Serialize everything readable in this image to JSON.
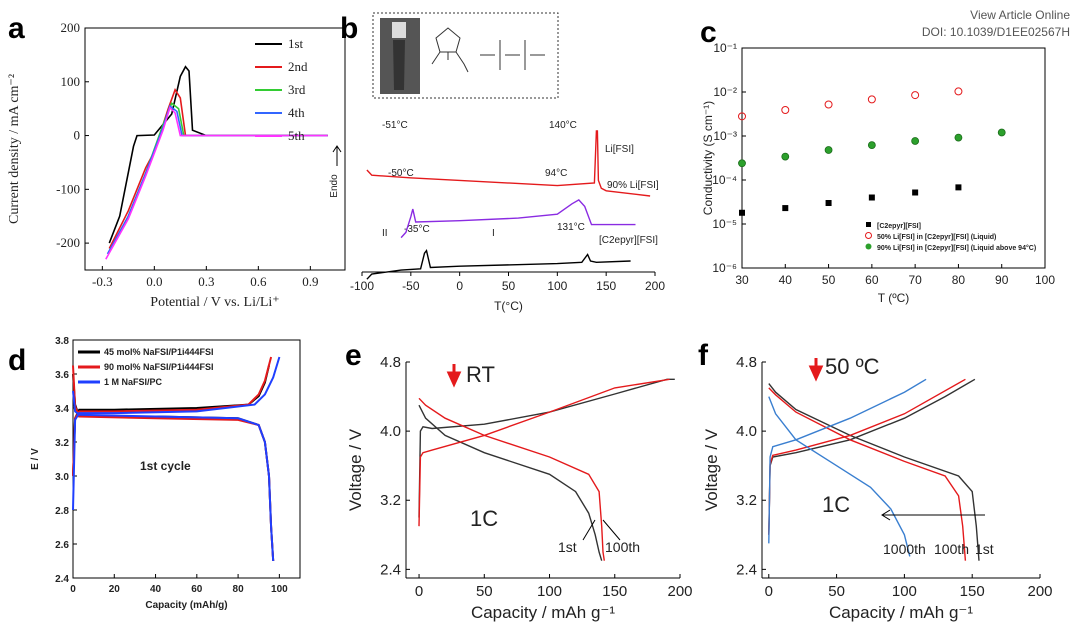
{
  "header": {
    "line1": "View Article Online",
    "line2": "DOI: 10.1039/D1EE02567H"
  },
  "chart_data": [
    {
      "panel": "a",
      "type": "line",
      "xlabel": "Potential / V vs. Li/Li⁺",
      "ylabel": "Current density / mA cm⁻²",
      "xlim": [
        -0.4,
        1.1
      ],
      "ylim": [
        -250,
        200
      ],
      "xticks": [
        "-0.3",
        "0.0",
        "0.3",
        "0.6",
        "0.9"
      ],
      "yticks": [
        "-200",
        "-100",
        "0",
        "100",
        "200"
      ],
      "xtick_values": [
        -0.3,
        0.0,
        0.3,
        0.6,
        0.9
      ],
      "ytick_values": [
        -200,
        -100,
        0,
        100,
        200
      ],
      "legend": "top-right",
      "series": [
        {
          "name": "1st",
          "color": "#000000",
          "x": [
            -0.26,
            -0.2,
            -0.12,
            -0.1,
            0.0,
            0.1,
            0.15,
            0.18,
            0.2,
            0.22,
            0.3,
            0.6,
            1.0
          ],
          "y": [
            -200,
            -150,
            -20,
            0,
            1,
            40,
            110,
            128,
            120,
            10,
            0,
            0,
            0
          ]
        },
        {
          "name": "2nd",
          "color": "#e41a1c",
          "x": [
            -0.26,
            -0.15,
            -0.05,
            0.0,
            0.08,
            0.12,
            0.15,
            0.18,
            0.3,
            1.0
          ],
          "y": [
            -210,
            -140,
            -60,
            -30,
            50,
            85,
            70,
            0,
            0,
            0
          ]
        },
        {
          "name": "3rd",
          "color": "#33cc33",
          "x": [
            -0.26,
            -0.15,
            -0.05,
            0.05,
            0.1,
            0.14,
            0.17,
            0.3,
            1.0
          ],
          "y": [
            -215,
            -150,
            -70,
            20,
            60,
            50,
            0,
            0,
            0
          ]
        },
        {
          "name": "4th",
          "color": "#3366ff",
          "x": [
            -0.27,
            -0.15,
            -0.05,
            0.05,
            0.09,
            0.13,
            0.16,
            0.3,
            1.0
          ],
          "y": [
            -220,
            -150,
            -70,
            15,
            55,
            45,
            0,
            0,
            0
          ]
        },
        {
          "name": "5th",
          "color": "#ff33ff",
          "x": [
            -0.28,
            -0.15,
            -0.05,
            0.05,
            0.09,
            0.12,
            0.15,
            0.3,
            1.0
          ],
          "y": [
            -230,
            -155,
            -75,
            10,
            52,
            42,
            0,
            0,
            0
          ]
        }
      ]
    },
    {
      "panel": "b",
      "type": "line",
      "xlabel": "T(°C)",
      "ylabel": "Endo",
      "xlim": [
        -100,
        200
      ],
      "xticks": [
        "-100",
        "-50",
        "0",
        "50",
        "100",
        "150",
        "200"
      ],
      "xtick_values": [
        -100,
        -50,
        0,
        50,
        100,
        150,
        200
      ],
      "annotations": [
        "-51°C",
        "140°C",
        "-50°C",
        "94°C",
        "II",
        "-35°C",
        "I",
        "131°C"
      ],
      "series": [
        {
          "name": "Li[FSI]",
          "color": "#e41a1c",
          "x": [
            -95,
            -90,
            -51,
            0,
            100,
            138,
            140,
            141,
            142,
            145,
            150,
            195
          ],
          "y": [
            3.0,
            2.8,
            2.7,
            2.6,
            2.4,
            2.5,
            4.5,
            4.5,
            2.6,
            2.3,
            2.2,
            2.0
          ]
        },
        {
          "name": "90% Li[FSI]",
          "color": "#8a2be2",
          "x": [
            -60,
            -55,
            -50,
            -48,
            -45,
            0,
            60,
            100,
            115,
            122,
            128,
            135,
            180
          ],
          "y": [
            0.4,
            0.6,
            1.2,
            1.5,
            1.0,
            1.05,
            1.15,
            1.3,
            1.7,
            1.85,
            1.6,
            0.9,
            0.9
          ]
        },
        {
          "name": "[C2epyr][FSI]",
          "color": "#000000",
          "x": [
            -95,
            -90,
            -60,
            -40,
            -36,
            -34,
            -30,
            0,
            100,
            125,
            131,
            134,
            140,
            175
          ],
          "y": [
            -1.2,
            -1.0,
            -0.85,
            -0.8,
            -0.2,
            -0.1,
            -0.75,
            -0.7,
            -0.6,
            -0.55,
            -0.25,
            -0.5,
            -0.55,
            -0.5
          ]
        }
      ]
    },
    {
      "panel": "c",
      "type": "scatter",
      "xlabel": "T (ºC)",
      "ylabel": "Conductivity (S cm⁻¹)",
      "xlim": [
        30,
        100
      ],
      "ylim": [
        1e-06,
        0.1
      ],
      "yscale": "log",
      "xticks": [
        "30",
        "40",
        "50",
        "60",
        "70",
        "80",
        "90",
        "100"
      ],
      "xtick_values": [
        30,
        40,
        50,
        60,
        70,
        80,
        90,
        100
      ],
      "yticks": [
        "10⁻⁶",
        "10⁻⁵",
        "10⁻⁴",
        "10⁻³",
        "10⁻²",
        "10⁻¹"
      ],
      "ytick_exps": [
        -6,
        -5,
        -4,
        -3,
        -2,
        -1
      ],
      "legend": "bottom-right",
      "series": [
        {
          "name": "[C2epyr][FSI]",
          "marker": "square",
          "color": "#000000",
          "x": [
            30,
            40,
            50,
            60,
            70,
            80
          ],
          "y": [
            1.8e-05,
            2.3e-05,
            3e-05,
            4e-05,
            5.2e-05,
            6.8e-05
          ]
        },
        {
          "name": "50% Li[FSI] in [C2epyr][FSI] (Liquid)",
          "marker": "open-circle",
          "color": "#e41a1c",
          "x": [
            30,
            40,
            50,
            60,
            70,
            80
          ],
          "y": [
            0.0028,
            0.0039,
            0.0052,
            0.0068,
            0.0085,
            0.0103
          ]
        },
        {
          "name": "90% Li[FSI] in [C2epyr][FSI] (Liquid above 94°C)",
          "marker": "green-circle",
          "color": "#2ca02c",
          "x": [
            30,
            40,
            50,
            60,
            70,
            80,
            90
          ],
          "y": [
            0.00024,
            0.00034,
            0.00048,
            0.00062,
            0.00077,
            0.00092,
            0.0012
          ]
        }
      ]
    },
    {
      "panel": "d",
      "type": "line",
      "xlabel": "Capacity (mAh/g)",
      "ylabel": "E / V",
      "xlim": [
        0,
        110
      ],
      "ylim": [
        2.4,
        3.8
      ],
      "xticks": [
        "0",
        "20",
        "40",
        "60",
        "80",
        "100"
      ],
      "xtick_values": [
        0,
        20,
        40,
        60,
        80,
        100
      ],
      "yticks": [
        "2.4",
        "2.6",
        "2.8",
        "3.0",
        "3.2",
        "3.4",
        "3.6",
        "3.8"
      ],
      "ytick_values": [
        2.4,
        2.6,
        2.8,
        3.0,
        3.2,
        3.4,
        3.6,
        3.8
      ],
      "annotation": "1st cycle",
      "legend": "top-left",
      "series": [
        {
          "name": "45 mol% NaFSI/P1i444FSI",
          "color": "#000000",
          "charge": {
            "x": [
              0,
              1,
              3,
              20,
              60,
              85,
              90,
              93,
              95
            ],
            "y": [
              3.0,
              3.34,
              3.39,
              3.39,
              3.4,
              3.42,
              3.47,
              3.55,
              3.65
            ]
          },
          "discharge": {
            "x": [
              0,
              1,
              3,
              40,
              80,
              90,
              93,
              95,
              96,
              97
            ],
            "y": [
              3.6,
              3.42,
              3.35,
              3.35,
              3.34,
              3.3,
              3.2,
              3.0,
              2.7,
              2.5
            ]
          }
        },
        {
          "name": "90 mol% NaFSI/P1i444FSI",
          "color": "#e41a1c",
          "charge": {
            "x": [
              0,
              1,
              3,
              20,
              60,
              85,
              90,
              93,
              96
            ],
            "y": [
              3.0,
              3.34,
              3.38,
              3.38,
              3.39,
              3.42,
              3.48,
              3.56,
              3.7
            ]
          },
          "discharge": {
            "x": [
              0,
              1,
              3,
              40,
              80,
              90,
              93,
              95,
              96,
              97
            ],
            "y": [
              3.65,
              3.41,
              3.35,
              3.34,
              3.33,
              3.3,
              3.2,
              3.0,
              2.7,
              2.5
            ]
          }
        },
        {
          "name": "1 M NaFSI/PC",
          "color": "#1f3fff",
          "charge": {
            "x": [
              0,
              1,
              3,
              20,
              60,
              88,
              93,
              97,
              100
            ],
            "y": [
              2.8,
              3.33,
              3.37,
              3.37,
              3.38,
              3.42,
              3.48,
              3.58,
              3.7
            ]
          },
          "discharge": {
            "x": [
              0,
              1,
              3,
              40,
              80,
              90,
              93,
              95,
              96,
              97
            ],
            "y": [
              3.5,
              3.38,
              3.36,
              3.35,
              3.34,
              3.3,
              3.2,
              3.0,
              2.7,
              2.5
            ]
          }
        }
      ]
    },
    {
      "panel": "e",
      "type": "line",
      "xlabel": "Capacity / mAh g⁻¹",
      "ylabel": "Voltage / V",
      "xlim": [
        -10,
        200
      ],
      "ylim": [
        2.3,
        4.8
      ],
      "xticks": [
        "0",
        "50",
        "100",
        "150",
        "200"
      ],
      "xtick_values": [
        0,
        50,
        100,
        150,
        200
      ],
      "yticks": [
        "2.4",
        "3.2",
        "4.0",
        "4.8"
      ],
      "ytick_values": [
        2.4,
        3.2,
        4.0,
        4.8
      ],
      "annotations": [
        "RT",
        "1C",
        "1st",
        "100th"
      ],
      "series": [
        {
          "name": "1st",
          "color": "#333333",
          "charge": {
            "x": [
              0,
              1,
              3,
              10,
              50,
              100,
              150,
              190,
              196
            ],
            "y": [
              3.0,
              4.0,
              4.05,
              4.03,
              4.08,
              4.22,
              4.43,
              4.6,
              4.6
            ]
          },
          "discharge": {
            "x": [
              0,
              5,
              20,
              50,
              100,
              120,
              130,
              135,
              138,
              140
            ],
            "y": [
              4.3,
              4.15,
              3.95,
              3.75,
              3.5,
              3.3,
              3.05,
              2.8,
              2.6,
              2.5
            ]
          }
        },
        {
          "name": "100th",
          "color": "#e41a1c",
          "charge": {
            "x": [
              0,
              1,
              3,
              10,
              50,
              100,
              150,
              192
            ],
            "y": [
              2.9,
              3.7,
              3.75,
              3.78,
              3.95,
              4.22,
              4.5,
              4.6
            ]
          },
          "discharge": {
            "x": [
              0,
              5,
              20,
              50,
              100,
              130,
              138,
              140,
              141,
              142
            ],
            "y": [
              4.38,
              4.3,
              4.15,
              3.95,
              3.7,
              3.5,
              3.3,
              2.9,
              2.6,
              2.5
            ]
          }
        }
      ]
    },
    {
      "panel": "f",
      "type": "line",
      "xlabel": "Capacity / mAh g⁻¹",
      "ylabel": "Voltage / V",
      "xlim": [
        -5,
        200
      ],
      "ylim": [
        2.3,
        4.8
      ],
      "xticks": [
        "0",
        "50",
        "100",
        "150",
        "200"
      ],
      "xtick_values": [
        0,
        50,
        100,
        150,
        200
      ],
      "yticks": [
        "2.4",
        "3.2",
        "4.0",
        "4.8"
      ],
      "ytick_values": [
        2.4,
        3.2,
        4.0,
        4.8
      ],
      "annotations": [
        "50 ºC",
        "1C",
        "1000th",
        "100th",
        "1st"
      ],
      "series": [
        {
          "name": "1st",
          "color": "#333333",
          "charge": {
            "x": [
              0,
              1,
              3,
              20,
              60,
              100,
              130,
              152
            ],
            "y": [
              2.8,
              3.6,
              3.7,
              3.75,
              3.9,
              4.15,
              4.4,
              4.6
            ]
          },
          "discharge": {
            "x": [
              0,
              5,
              20,
              60,
              100,
              140,
              150,
              153,
              155
            ],
            "y": [
              4.55,
              4.45,
              4.25,
              3.95,
              3.7,
              3.48,
              3.3,
              2.9,
              2.5
            ]
          }
        },
        {
          "name": "100th",
          "color": "#e41a1c",
          "charge": {
            "x": [
              0,
              1,
              3,
              20,
              60,
              100,
              145
            ],
            "y": [
              2.8,
              3.62,
              3.72,
              3.78,
              3.95,
              4.2,
              4.6
            ]
          },
          "discharge": {
            "x": [
              0,
              5,
              20,
              60,
              100,
              130,
              140,
              143,
              145
            ],
            "y": [
              4.5,
              4.42,
              4.22,
              3.9,
              3.65,
              3.48,
              3.25,
              2.9,
              2.5
            ]
          }
        },
        {
          "name": "1000th",
          "color": "#3a7fd0",
          "charge": {
            "x": [
              0,
              1,
              3,
              20,
              60,
              100,
              116
            ],
            "y": [
              2.7,
              3.7,
              3.82,
              3.9,
              4.15,
              4.45,
              4.6
            ]
          },
          "discharge": {
            "x": [
              0,
              5,
              20,
              50,
              75,
              90,
              100,
              104
            ],
            "y": [
              4.4,
              4.2,
              3.9,
              3.6,
              3.35,
              3.1,
              2.8,
              2.55
            ]
          }
        }
      ]
    }
  ]
}
